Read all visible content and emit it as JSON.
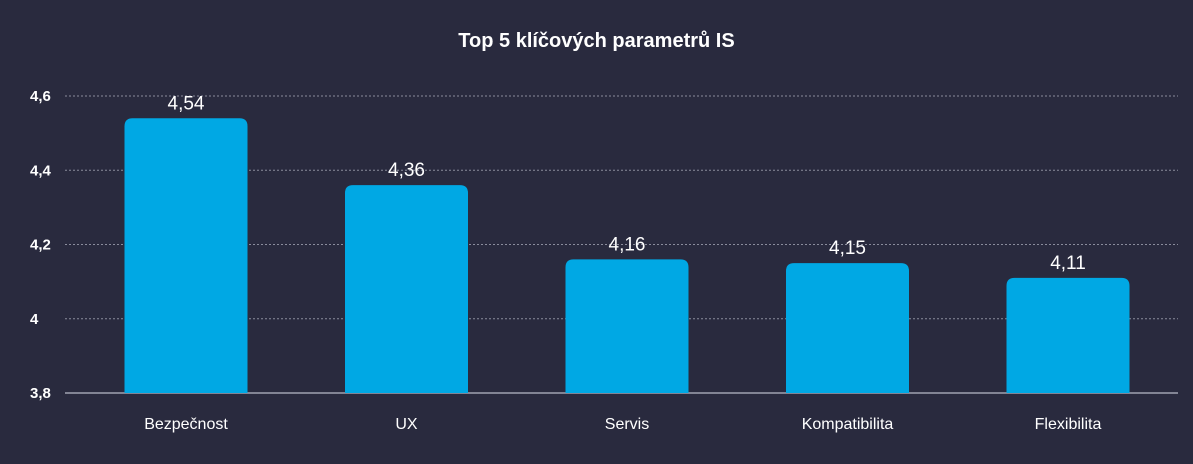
{
  "chart_data": {
    "type": "bar",
    "title": "Top 5 klíčových parametrů IS",
    "xlabel": "",
    "ylabel": "",
    "categories": [
      "Bezpečnost",
      "UX",
      "Servis",
      "Kompatibilita",
      "Flexibilita"
    ],
    "values": [
      4.54,
      4.36,
      4.16,
      4.15,
      4.11
    ],
    "data_labels": [
      "4,54",
      "4,36",
      "4,16",
      "4,15",
      "4,11"
    ],
    "ylim": [
      3.8,
      4.6
    ],
    "yticks": [
      3.8,
      4.0,
      4.2,
      4.4,
      4.6
    ],
    "ytick_labels": [
      "3,8",
      "4",
      "4,2",
      "4,4",
      "4,6"
    ],
    "grid": true,
    "legend": "none",
    "colors": {
      "bar": "#00a8e4",
      "background": "#292a3e",
      "grid": "#8a8c9c",
      "text": "#ffffff"
    }
  }
}
